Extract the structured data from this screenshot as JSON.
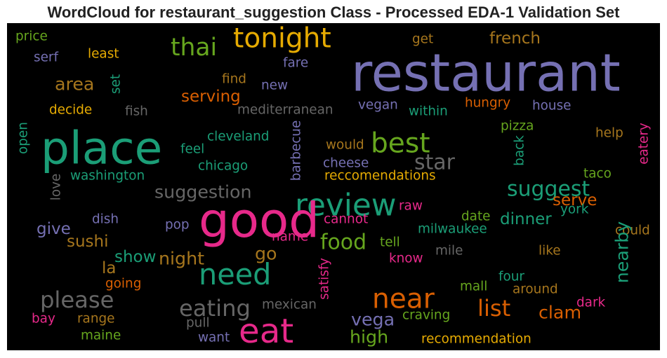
{
  "chart_data": {
    "type": "wordcloud",
    "title": "WordCloud for restaurant_suggestion Class - Processed EDA-1 Validation Set",
    "background": "#000000",
    "words": [
      {
        "text": "price",
        "color": "#66a61e"
      },
      {
        "text": "serf",
        "color": "#7570b3"
      },
      {
        "text": "least",
        "color": "#e6ab02"
      },
      {
        "text": "tonight",
        "color": "#e6ab02"
      },
      {
        "text": "get",
        "color": "#a6761d"
      },
      {
        "text": "french",
        "color": "#a6761d"
      },
      {
        "text": "thai",
        "color": "#66a61e"
      },
      {
        "text": "restaurant",
        "color": "#7570b3"
      },
      {
        "text": "set",
        "color": "#1b9e77"
      },
      {
        "text": "area",
        "color": "#a6761d"
      },
      {
        "text": "find",
        "color": "#a6761d"
      },
      {
        "text": "fare",
        "color": "#7570b3"
      },
      {
        "text": "new",
        "color": "#7570b3"
      },
      {
        "text": "serving",
        "color": "#d95f02"
      },
      {
        "text": "decide",
        "color": "#e6ab02"
      },
      {
        "text": "fish",
        "color": "#666666"
      },
      {
        "text": "mediterranean",
        "color": "#666666"
      },
      {
        "text": "vegan",
        "color": "#7570b3"
      },
      {
        "text": "within",
        "color": "#1b9e77"
      },
      {
        "text": "hungry",
        "color": "#d95f02"
      },
      {
        "text": "house",
        "color": "#7570b3"
      },
      {
        "text": "place",
        "color": "#1b9e77"
      },
      {
        "text": "best",
        "color": "#66a61e"
      },
      {
        "text": "pizza",
        "color": "#66a61e"
      },
      {
        "text": "open",
        "color": "#1b9e77"
      },
      {
        "text": "barbecue",
        "color": "#7570b3"
      },
      {
        "text": "cleveland",
        "color": "#1b9e77"
      },
      {
        "text": "help",
        "color": "#a6761d"
      },
      {
        "text": "eatery",
        "color": "#e7298a"
      },
      {
        "text": "feel",
        "color": "#1b9e77"
      },
      {
        "text": "would",
        "color": "#a6761d"
      },
      {
        "text": "back",
        "color": "#1b9e77"
      },
      {
        "text": "star",
        "color": "#666666"
      },
      {
        "text": "chicago",
        "color": "#1b9e77"
      },
      {
        "text": "cheese",
        "color": "#7570b3"
      },
      {
        "text": "washington",
        "color": "#1b9e77"
      },
      {
        "text": "reccomendations",
        "color": "#e6ab02"
      },
      {
        "text": "taco",
        "color": "#66a61e"
      },
      {
        "text": "love",
        "color": "#666666"
      },
      {
        "text": "suggestion",
        "color": "#666666"
      },
      {
        "text": "suggest",
        "color": "#1b9e77"
      },
      {
        "text": "review",
        "color": "#1b9e77"
      },
      {
        "text": "serve",
        "color": "#d95f02"
      },
      {
        "text": "good",
        "color": "#e7298a"
      },
      {
        "text": "raw",
        "color": "#e7298a"
      },
      {
        "text": "york",
        "color": "#1b9e77"
      },
      {
        "text": "dish",
        "color": "#7570b3"
      },
      {
        "text": "pop",
        "color": "#7570b3"
      },
      {
        "text": "give",
        "color": "#7570b3"
      },
      {
        "text": "dinner",
        "color": "#1b9e77"
      },
      {
        "text": "date",
        "color": "#66a61e"
      },
      {
        "text": "cannot",
        "color": "#e7298a"
      },
      {
        "text": "milwaukee",
        "color": "#1b9e77"
      },
      {
        "text": "could",
        "color": "#a6761d"
      },
      {
        "text": "name",
        "color": "#e7298a"
      },
      {
        "text": "food",
        "color": "#66a61e"
      },
      {
        "text": "sushi",
        "color": "#a6761d"
      },
      {
        "text": "tell",
        "color": "#66a61e"
      },
      {
        "text": "show",
        "color": "#1b9e77"
      },
      {
        "text": "night",
        "color": "#a6761d"
      },
      {
        "text": "go",
        "color": "#a6761d"
      },
      {
        "text": "mile",
        "color": "#666666"
      },
      {
        "text": "like",
        "color": "#a6761d"
      },
      {
        "text": "know",
        "color": "#e7298a"
      },
      {
        "text": "nearby",
        "color": "#1b9e77"
      },
      {
        "text": "la",
        "color": "#a6761d"
      },
      {
        "text": "satisfy",
        "color": "#e7298a"
      },
      {
        "text": "need",
        "color": "#1b9e77"
      },
      {
        "text": "four",
        "color": "#1b9e77"
      },
      {
        "text": "going",
        "color": "#d95f02"
      },
      {
        "text": "mall",
        "color": "#66a61e"
      },
      {
        "text": "around",
        "color": "#a6761d"
      },
      {
        "text": "near",
        "color": "#d95f02"
      },
      {
        "text": "please",
        "color": "#666666"
      },
      {
        "text": "dark",
        "color": "#e7298a"
      },
      {
        "text": "list",
        "color": "#d95f02"
      },
      {
        "text": "eating",
        "color": "#666666"
      },
      {
        "text": "mexican",
        "color": "#666666"
      },
      {
        "text": "clam",
        "color": "#d95f02"
      },
      {
        "text": "bay",
        "color": "#e7298a"
      },
      {
        "text": "range",
        "color": "#a6761d"
      },
      {
        "text": "pull",
        "color": "#666666"
      },
      {
        "text": "vega",
        "color": "#7570b3"
      },
      {
        "text": "craving",
        "color": "#66a61e"
      },
      {
        "text": "eat",
        "color": "#e7298a"
      },
      {
        "text": "maine",
        "color": "#66a61e"
      },
      {
        "text": "want",
        "color": "#7570b3"
      },
      {
        "text": "high",
        "color": "#66a61e"
      },
      {
        "text": "recommendation",
        "color": "#e6ab02"
      }
    ]
  }
}
